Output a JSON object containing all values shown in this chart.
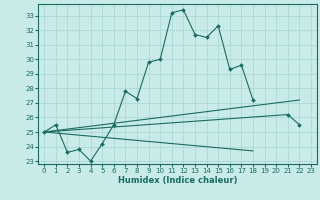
{
  "title": "",
  "xlabel": "Humidex (Indice chaleur)",
  "bg_color": "#c8ebe8",
  "grid_color": "#a8d5d0",
  "line_color": "#1a6b60",
  "xlim": [
    -0.5,
    23.5
  ],
  "ylim": [
    22.8,
    33.8
  ],
  "xticks": [
    0,
    1,
    2,
    3,
    4,
    5,
    6,
    7,
    8,
    9,
    10,
    11,
    12,
    13,
    14,
    15,
    16,
    17,
    18,
    19,
    20,
    21,
    22,
    23
  ],
  "yticks": [
    23,
    24,
    25,
    26,
    27,
    28,
    29,
    30,
    31,
    32,
    33
  ],
  "series_main": {
    "x": [
      0,
      1,
      2,
      3,
      4,
      5,
      6,
      7,
      8,
      9,
      10,
      11,
      12,
      13,
      14,
      15,
      16,
      17,
      18,
      19,
      20,
      21,
      22
    ],
    "y": [
      25.0,
      25.5,
      23.6,
      23.8,
      23.0,
      24.2,
      25.5,
      27.8,
      27.3,
      29.8,
      30.0,
      33.2,
      33.4,
      31.7,
      31.5,
      32.3,
      29.3,
      29.6,
      27.2,
      null,
      null,
      26.2,
      25.5
    ]
  },
  "line1": {
    "x": [
      0,
      22
    ],
    "y": [
      25.0,
      27.2
    ]
  },
  "line2": {
    "x": [
      0,
      21
    ],
    "y": [
      25.0,
      26.2
    ]
  },
  "line3": {
    "x": [
      0,
      18
    ],
    "y": [
      25.0,
      23.7
    ]
  }
}
